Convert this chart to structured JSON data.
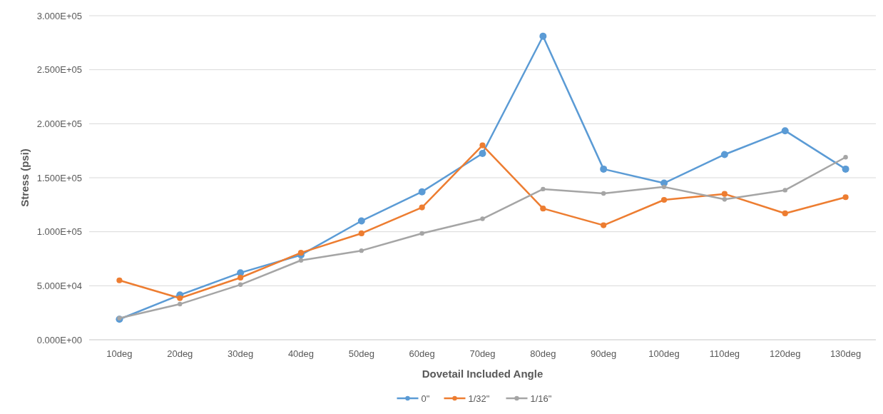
{
  "chart_data": {
    "type": "line",
    "xlabel": "Dovetail Included Angle",
    "ylabel": "Stress (psi)",
    "categories": [
      "10deg",
      "20deg",
      "30deg",
      "40deg",
      "50deg",
      "60deg",
      "70deg",
      "80deg",
      "90deg",
      "100deg",
      "110deg",
      "120deg",
      "130deg"
    ],
    "series": [
      {
        "name": "0\"",
        "color": "#5b9bd5",
        "values": [
          19000,
          41500,
          62000,
          78500,
          110000,
          137000,
          172500,
          281000,
          158000,
          145000,
          171500,
          193500,
          158000
        ]
      },
      {
        "name": "1/32\"",
        "color": "#ed7d31",
        "values": [
          55000,
          38500,
          57500,
          80500,
          98500,
          122500,
          180000,
          121500,
          106000,
          129500,
          135000,
          117000,
          132000
        ]
      },
      {
        "name": "1/16\"",
        "color": "#a5a5a5",
        "values": [
          20000,
          33000,
          51000,
          73500,
          82500,
          98500,
          112000,
          139500,
          135500,
          141500,
          130000,
          138500,
          169000
        ]
      }
    ],
    "ylim": [
      0,
      300000
    ],
    "yticks": [
      {
        "value": 0,
        "label": "0.000E+00"
      },
      {
        "value": 50000,
        "label": "5.000E+04"
      },
      {
        "value": 100000,
        "label": "1.000E+05"
      },
      {
        "value": 150000,
        "label": "1.500E+05"
      },
      {
        "value": 200000,
        "label": "2.000E+05"
      },
      {
        "value": 250000,
        "label": "2.500E+05"
      },
      {
        "value": 300000,
        "label": "3.000E+05"
      }
    ],
    "grid": "y",
    "legend": "bottom",
    "marker": "circle",
    "line_style": "solid"
  }
}
